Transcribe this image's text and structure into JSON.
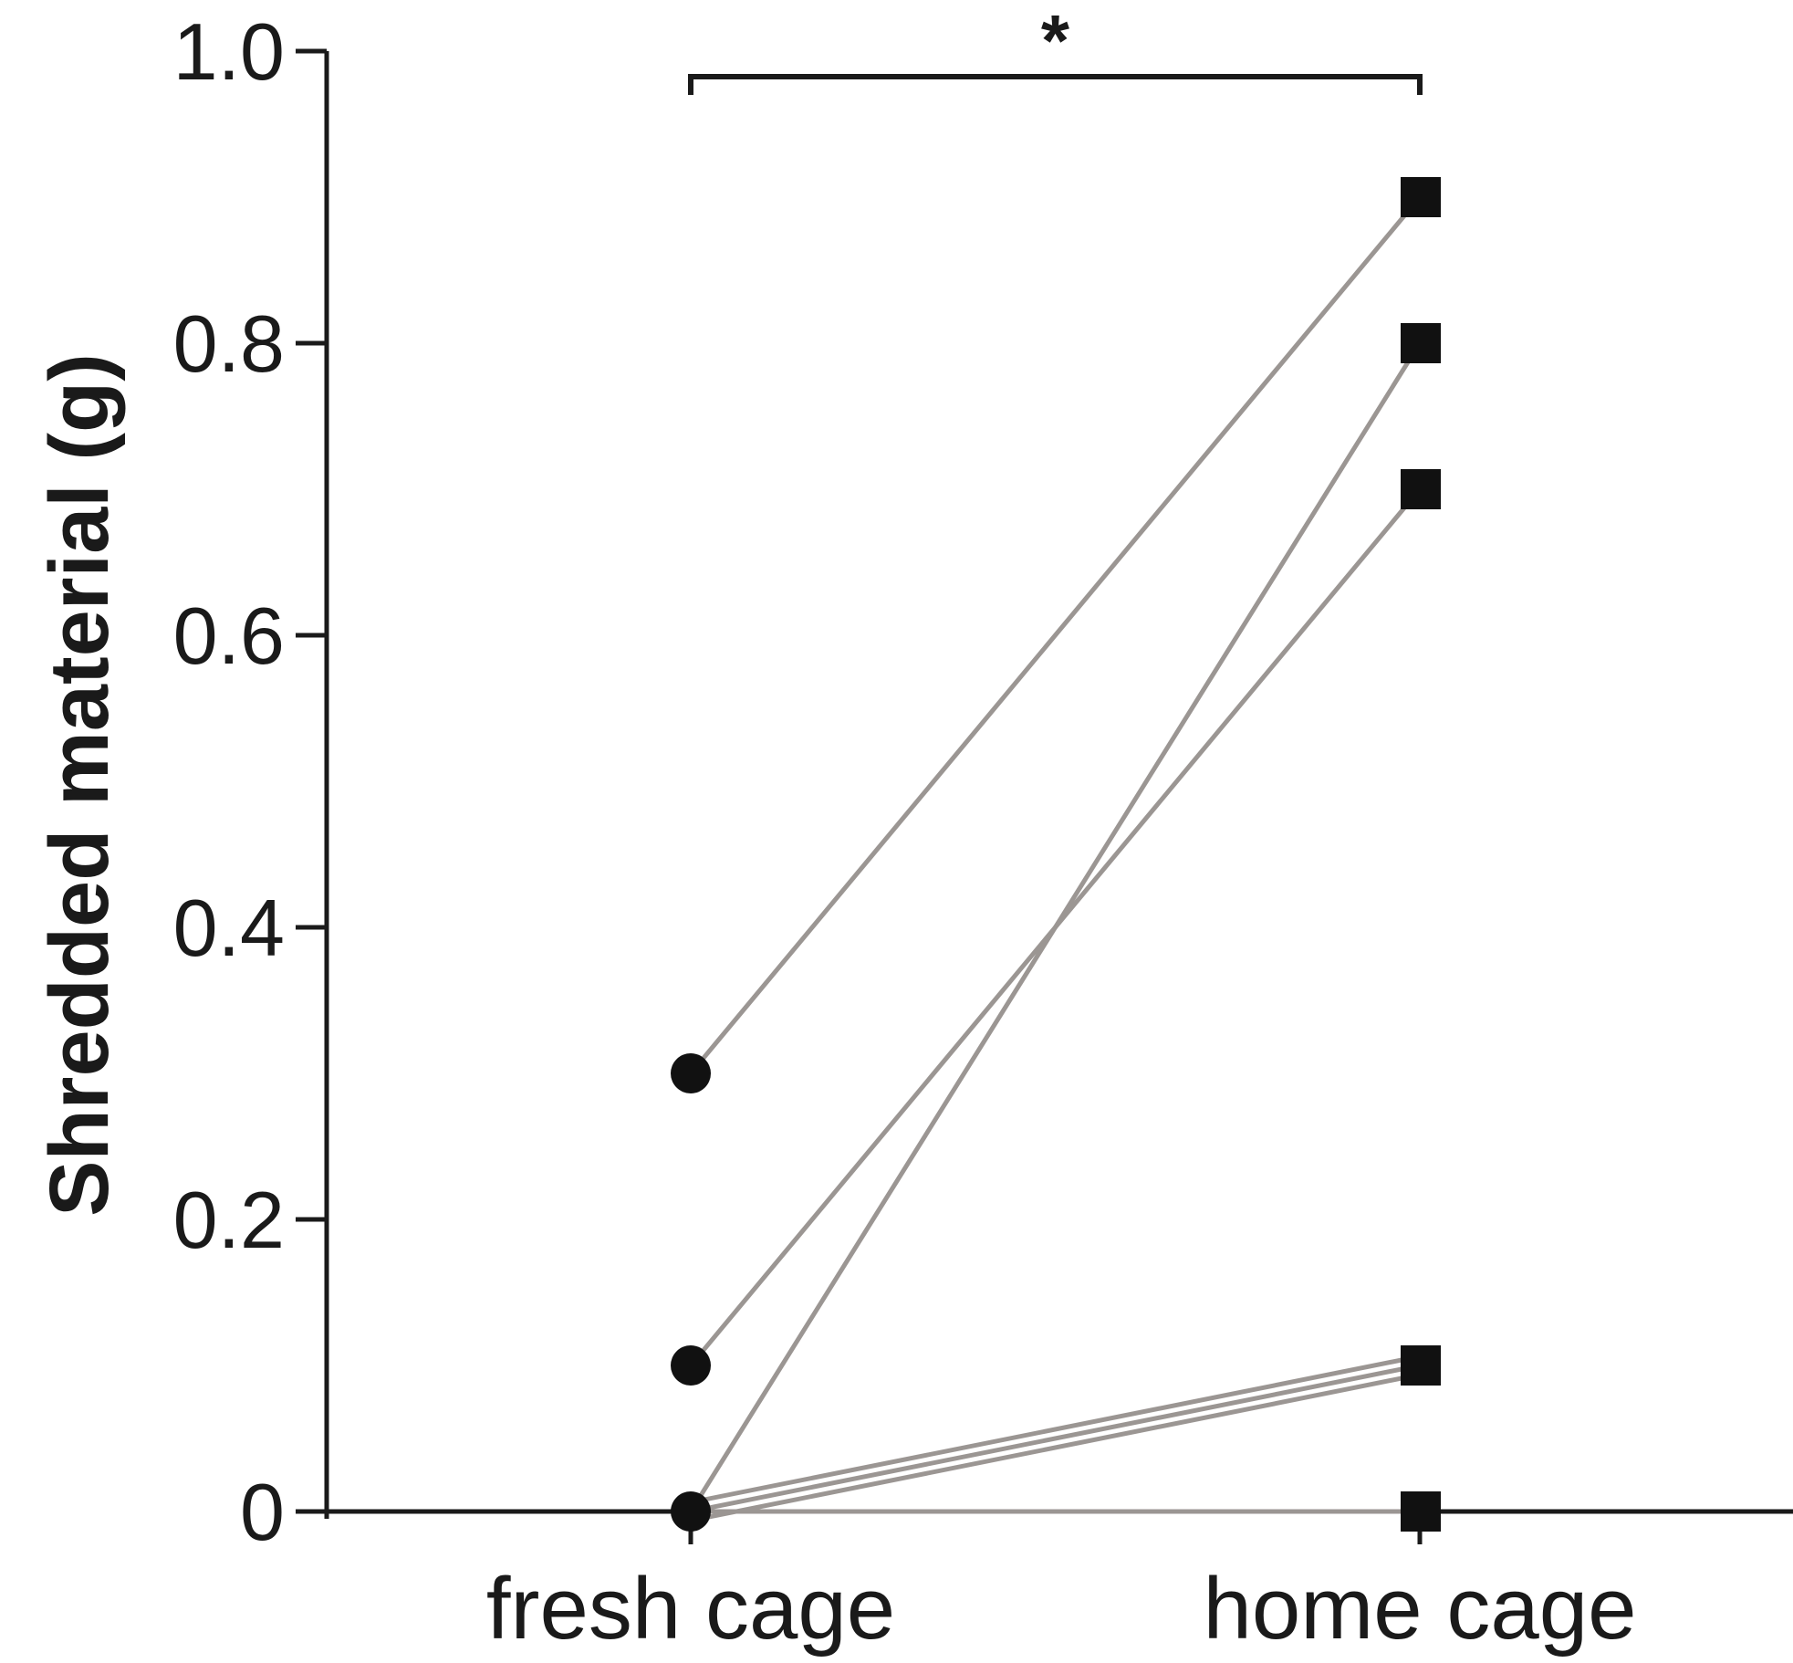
{
  "chart_data": {
    "type": "line",
    "title": "",
    "xlabel": "",
    "ylabel": "Shredded material (g)",
    "categories": [
      "fresh cage",
      "home cage"
    ],
    "ylim": [
      0,
      1.0
    ],
    "yticks": [
      0,
      0.2,
      0.4,
      0.6,
      0.8,
      1.0
    ],
    "ytick_labels": [
      "0",
      "0.2",
      "0.4",
      "0.6",
      "0.8",
      "1.0"
    ],
    "grid": false,
    "legend": "none",
    "paired_lines": [
      {
        "values": [
          0.3,
          0.9
        ]
      },
      {
        "values": [
          0.1,
          0.7
        ]
      },
      {
        "values": [
          0.0,
          0.8
        ]
      },
      {
        "values": [
          0.0,
          0.1
        ]
      },
      {
        "values": [
          0.0,
          0.1
        ]
      },
      {
        "values": [
          0.0,
          0.1
        ]
      },
      {
        "values": [
          0.0,
          0.0
        ]
      }
    ],
    "markers": [
      {
        "category": "fresh cage",
        "shape": "circle",
        "values": [
          0.3,
          0.1,
          0.0
        ]
      },
      {
        "category": "home cage",
        "shape": "square",
        "values": [
          0.9,
          0.8,
          0.7,
          0.1,
          0.0
        ]
      }
    ],
    "significance": {
      "from": "fresh cage",
      "to": "home cage",
      "label": "*"
    },
    "colors": {
      "axis": "#1a1a1a",
      "pair_line": "#9b9693",
      "marker": "#111111"
    }
  }
}
